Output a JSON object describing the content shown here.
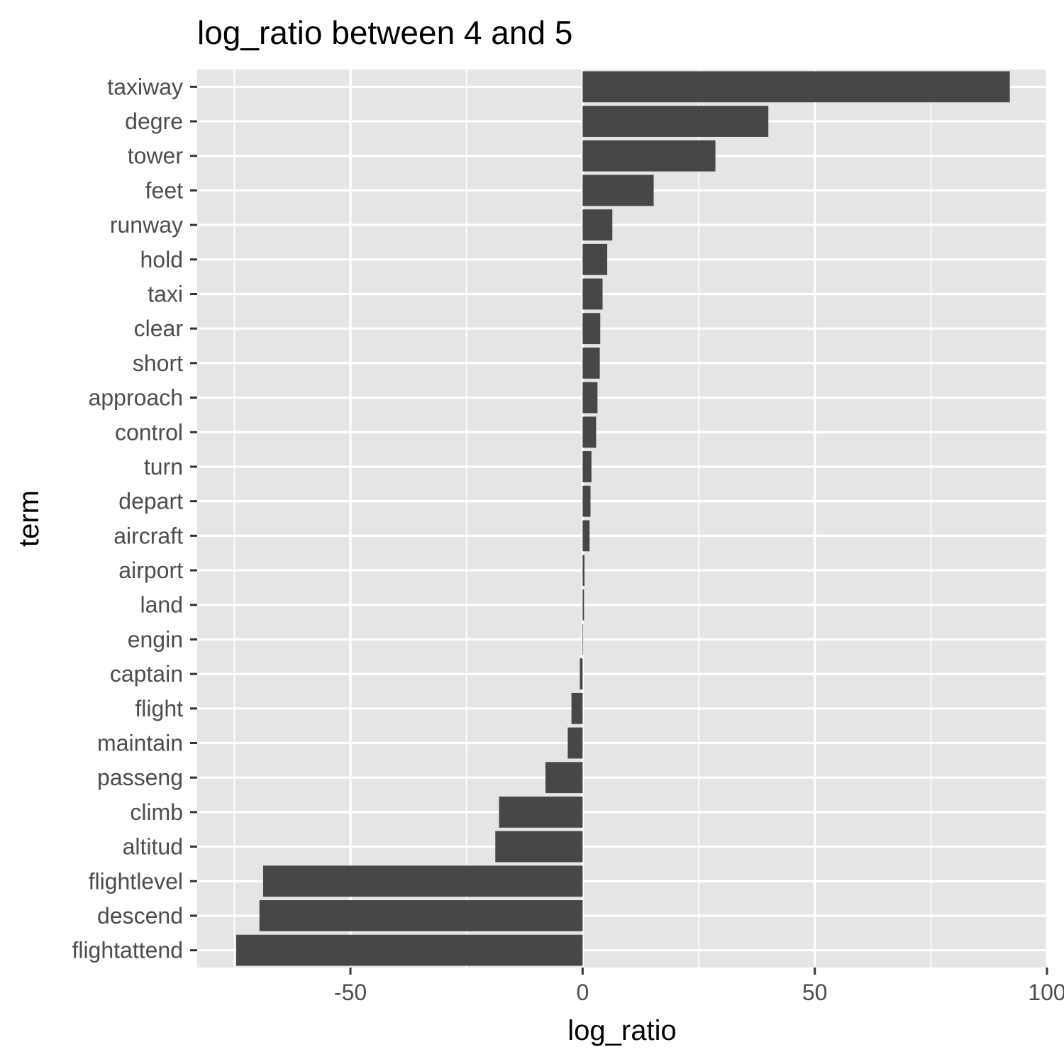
{
  "chart_data": {
    "type": "bar",
    "orientation": "horizontal",
    "title": "log_ratio between 4 and 5",
    "xlabel": "log_ratio",
    "ylabel": "term",
    "xlim": [
      -83,
      100
    ],
    "xticks": [
      -50,
      0,
      50,
      100
    ],
    "xtick_labels": [
      "-50",
      "0",
      "50",
      "100"
    ],
    "grid": true,
    "legend": "none",
    "colors": {
      "panel_background": "#e5e5e5",
      "grid": "#ffffff",
      "bar": "#474747",
      "tick_text": "#4d4d4d",
      "tick_mark": "#333333",
      "text": "#000000"
    },
    "categories": [
      "taxiway",
      "degre",
      "tower",
      "feet",
      "runway",
      "hold",
      "taxi",
      "clear",
      "short",
      "approach",
      "control",
      "turn",
      "depart",
      "aircraft",
      "airport",
      "land",
      "engin",
      "captain",
      "flight",
      "maintain",
      "passeng",
      "climb",
      "altitud",
      "flightlevel",
      "descend",
      "flightattend"
    ],
    "values": [
      92.0,
      40.0,
      28.6,
      15.3,
      6.4,
      5.3,
      4.3,
      3.8,
      3.7,
      3.2,
      2.9,
      1.9,
      1.7,
      1.5,
      0.4,
      0.3,
      0.1,
      -0.6,
      -2.4,
      -3.2,
      -8.0,
      -18.0,
      -18.8,
      -68.8,
      -69.6,
      -74.6
    ]
  }
}
